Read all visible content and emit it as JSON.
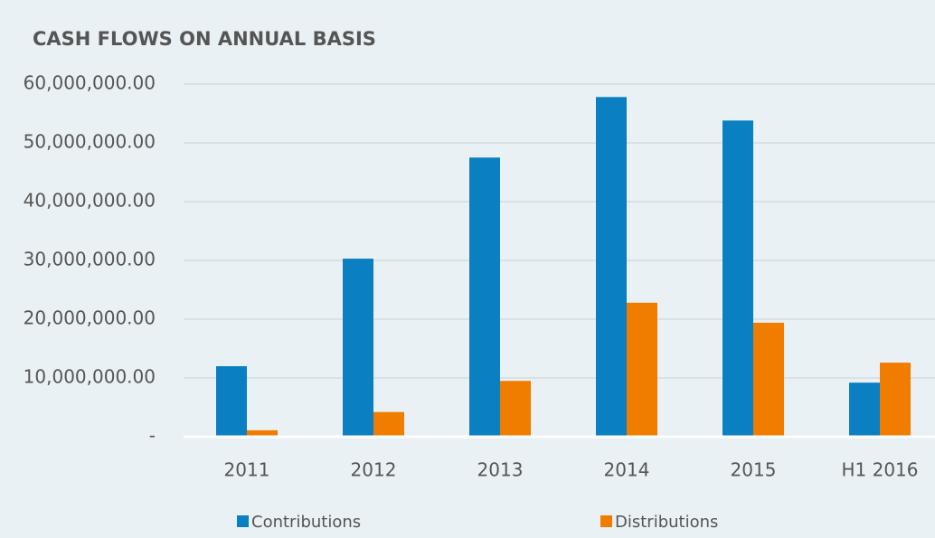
{
  "chart_data": {
    "type": "bar",
    "title": "CASH FLOWS ON ANNUAL BASIS",
    "categories": [
      "2011",
      "2012",
      "2013",
      "2014",
      "2015",
      "H1 2016"
    ],
    "series": [
      {
        "name": "Contributions",
        "color": "#0a7fc1",
        "values": [
          12000000,
          30300000,
          47500000,
          57800000,
          53800000,
          9200000
        ]
      },
      {
        "name": "Distributions",
        "color": "#f07c00",
        "values": [
          1100000,
          4200000,
          9500000,
          22800000,
          19400000,
          12600000
        ]
      }
    ],
    "ylim": [
      0,
      60000000
    ],
    "yticks": [
      {
        "value": 0,
        "label": "-"
      },
      {
        "value": 10000000,
        "label": "10,000,000.00"
      },
      {
        "value": 20000000,
        "label": "20,000,000.00"
      },
      {
        "value": 30000000,
        "label": "30,000,000.00"
      },
      {
        "value": 40000000,
        "label": "40,000,000.00"
      },
      {
        "value": 50000000,
        "label": "50,000,000.00"
      },
      {
        "value": 60000000,
        "label": "60,000,000.00"
      }
    ],
    "grid": true,
    "legend": "bottom"
  }
}
